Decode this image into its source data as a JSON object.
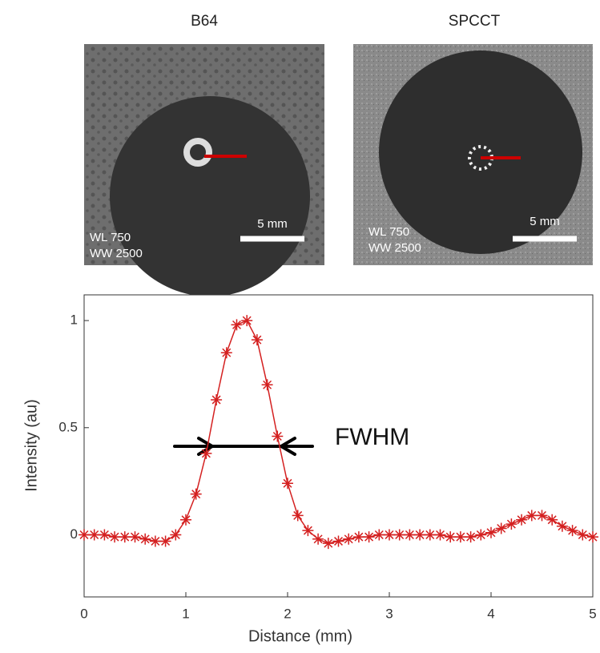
{
  "panels": [
    {
      "title": "B64",
      "window_level": "WL 750",
      "window_width": "WW 2500",
      "scale_bar": "5 mm"
    },
    {
      "title": "SPCCT",
      "window_level": "WL 750",
      "window_width": "WW 2500",
      "scale_bar": "5 mm"
    }
  ],
  "chart_data": {
    "type": "line",
    "xlabel": "Distance (mm)",
    "ylabel": "Intensity (au)",
    "annotation": "FWHM",
    "x": [
      0,
      0.1,
      0.2,
      0.3,
      0.4,
      0.5,
      0.6,
      0.7,
      0.8,
      0.9,
      1.0,
      1.1,
      1.2,
      1.3,
      1.4,
      1.5,
      1.6,
      1.7,
      1.8,
      1.9,
      2.0,
      2.1,
      2.2,
      2.3,
      2.4,
      2.5,
      2.6,
      2.7,
      2.8,
      2.9,
      3.0,
      3.1,
      3.2,
      3.3,
      3.4,
      3.5,
      3.6,
      3.7,
      3.8,
      3.9,
      4.0,
      4.1,
      4.2,
      4.3,
      4.4,
      4.5,
      4.6,
      4.7,
      4.8,
      4.9,
      5.0
    ],
    "series": [
      {
        "color": "#d42020",
        "values": [
          0,
          0,
          0,
          -0.01,
          -0.01,
          -0.01,
          -0.02,
          -0.03,
          -0.03,
          0,
          0.07,
          0.19,
          0.38,
          0.63,
          0.85,
          0.98,
          1.0,
          0.91,
          0.7,
          0.46,
          0.24,
          0.09,
          0.02,
          -0.02,
          -0.04,
          -0.03,
          -0.02,
          -0.01,
          -0.01,
          0,
          0,
          0,
          0,
          0,
          0,
          0,
          -0.01,
          -0.01,
          -0.01,
          0,
          0.01,
          0.03,
          0.05,
          0.07,
          0.09,
          0.09,
          0.07,
          0.04,
          0.02,
          0,
          -0.01
        ]
      }
    ],
    "xlim": [
      0,
      5
    ],
    "ylim": [
      -0.29,
      1.12
    ],
    "xticks": [
      0,
      1,
      2,
      3,
      4,
      5
    ],
    "yticks": [
      0,
      0.5,
      1
    ]
  }
}
